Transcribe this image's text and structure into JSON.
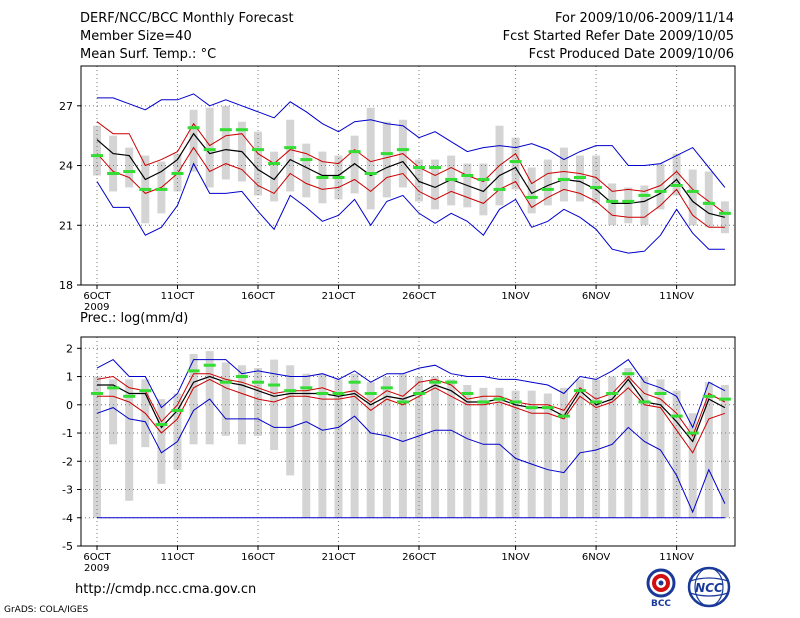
{
  "header": {
    "line1_left": "DERF/NCC/BCC Monthly Forecast",
    "line2_left": "Member Size=40",
    "line3_left": "Mean Surf. Temp.: °C",
    "line1_right": "For 2009/10/06-2009/11/14",
    "line2_right": "Fcst Started Refer Date 2009/10/05",
    "line3_right": "Fcst Produced Date 2009/10/06"
  },
  "footer": {
    "url": "http://cmdp.ncc.cma.gov.cn",
    "grads": "GrADS: COLA/IGES",
    "logo_left_text": "BCC",
    "logo_right_text": "NCC"
  },
  "colors": {
    "envelope": "#0000cc",
    "spread": "#cc0000",
    "mean": "#000000",
    "box": "#d4d4d4",
    "member_mean": "#33dd33",
    "grid": "#777777"
  },
  "chart_data": [
    {
      "type": "line",
      "title": "Mean Surf. Temp.: °C",
      "ylabel": "°C",
      "ylim": [
        18,
        29
      ],
      "yticks": [
        18,
        21,
        24,
        27
      ],
      "x_tick_labels": [
        "6OCT",
        "11OCT",
        "16OCT",
        "21OCT",
        "26OCT",
        "1NOV",
        "6NOV",
        "11NOV"
      ],
      "x_tick_days": [
        0,
        5,
        10,
        15,
        20,
        26,
        31,
        36
      ],
      "year_label": "2009",
      "days": 40,
      "series": [
        {
          "name": "max",
          "values": [
            27.4,
            27.4,
            27.1,
            26.8,
            27.3,
            27.3,
            27.6,
            27.0,
            27.3,
            27.0,
            26.7,
            26.4,
            27.2,
            26.7,
            26.1,
            25.7,
            26.2,
            26.3,
            26.1,
            26.0,
            25.4,
            25.7,
            25.2,
            24.7,
            24.9,
            25.0,
            24.9,
            25.1,
            24.8,
            24.3,
            24.7,
            25.0,
            25.0,
            24.0,
            24.0,
            24.1,
            24.5,
            24.9,
            23.9,
            22.9
          ]
        },
        {
          "name": "upper",
          "values": [
            26.2,
            25.6,
            25.6,
            24.0,
            24.3,
            24.7,
            26.1,
            25.0,
            25.5,
            25.6,
            24.6,
            24.1,
            24.8,
            24.6,
            24.2,
            24.1,
            24.8,
            24.2,
            24.4,
            24.6,
            23.9,
            23.5,
            23.9,
            23.5,
            23.2,
            24.0,
            24.6,
            23.1,
            23.6,
            23.7,
            23.6,
            23.4,
            22.7,
            22.8,
            22.7,
            23.0,
            23.7,
            22.8,
            22.2,
            21.6
          ]
        },
        {
          "name": "mean",
          "values": [
            25.3,
            24.6,
            24.5,
            23.3,
            23.7,
            24.3,
            25.6,
            24.6,
            24.8,
            24.7,
            23.8,
            23.3,
            24.3,
            23.9,
            23.5,
            23.5,
            24.1,
            23.5,
            23.9,
            24.2,
            23.2,
            22.9,
            23.3,
            23.0,
            22.7,
            23.5,
            23.9,
            22.6,
            23.0,
            23.3,
            23.2,
            22.8,
            22.1,
            22.1,
            22.2,
            22.6,
            23.3,
            22.2,
            21.6,
            21.4
          ]
        },
        {
          "name": "lower",
          "values": [
            24.6,
            23.7,
            23.4,
            22.6,
            22.9,
            23.6,
            24.9,
            23.7,
            24.1,
            23.8,
            23.0,
            22.6,
            23.6,
            23.1,
            22.8,
            22.9,
            23.3,
            22.7,
            23.4,
            23.6,
            22.7,
            22.3,
            22.7,
            22.4,
            22.1,
            22.8,
            23.2,
            21.9,
            22.4,
            22.8,
            22.6,
            22.2,
            21.5,
            21.4,
            21.4,
            22.0,
            22.8,
            21.5,
            20.9,
            20.9
          ]
        },
        {
          "name": "min",
          "values": [
            23.2,
            21.9,
            21.9,
            20.5,
            20.9,
            22.0,
            24.1,
            22.6,
            22.6,
            22.7,
            21.7,
            20.8,
            22.5,
            21.9,
            21.2,
            21.5,
            22.3,
            21.0,
            22.2,
            22.5,
            21.6,
            21.1,
            21.6,
            21.2,
            20.5,
            21.8,
            22.3,
            20.9,
            21.2,
            21.8,
            21.4,
            20.8,
            19.8,
            19.6,
            19.7,
            20.5,
            21.8,
            20.6,
            19.8,
            19.8
          ]
        },
        {
          "name": "ensemble_members",
          "values": [
            24.5,
            23.6,
            23.7,
            22.8,
            22.8,
            23.6,
            25.9,
            24.8,
            25.8,
            25.8,
            24.8,
            24.1,
            24.9,
            24.3,
            23.4,
            23.4,
            24.7,
            23.6,
            24.6,
            24.8,
            23.9,
            23.9,
            23.3,
            23.5,
            23.3,
            22.8,
            24.2,
            22.4,
            22.8,
            23.3,
            23.4,
            22.9,
            22.2,
            22.2,
            22.5,
            22.7,
            23.0,
            22.7,
            22.1,
            21.6
          ]
        }
      ],
      "box_ranges": [
        [
          23.5,
          26.0
        ],
        [
          22.7,
          25.5
        ],
        [
          22.9,
          24.9
        ],
        [
          21.1,
          24.5
        ],
        [
          21.6,
          24.2
        ],
        [
          22.7,
          24.6
        ],
        [
          23.7,
          26.8
        ],
        [
          22.9,
          26.9
        ],
        [
          23.3,
          27.0
        ],
        [
          23.2,
          26.2
        ],
        [
          22.5,
          25.7
        ],
        [
          22.2,
          24.7
        ],
        [
          22.7,
          26.3
        ],
        [
          22.4,
          25.1
        ],
        [
          22.1,
          24.7
        ],
        [
          22.3,
          24.5
        ],
        [
          22.6,
          25.5
        ],
        [
          21.8,
          26.9
        ],
        [
          22.4,
          26.2
        ],
        [
          22.9,
          26.3
        ],
        [
          22.2,
          24.3
        ],
        [
          21.8,
          24.3
        ],
        [
          22.0,
          24.5
        ],
        [
          21.9,
          24.1
        ],
        [
          21.5,
          24.1
        ],
        [
          22.0,
          26.0
        ],
        [
          22.8,
          25.4
        ],
        [
          21.6,
          23.9
        ],
        [
          22.0,
          24.3
        ],
        [
          22.2,
          24.9
        ],
        [
          22.2,
          24.5
        ],
        [
          22.1,
          24.5
        ],
        [
          21.0,
          23.1
        ],
        [
          21.1,
          22.9
        ],
        [
          21.0,
          23.0
        ],
        [
          21.8,
          24.1
        ],
        [
          22.5,
          24.6
        ],
        [
          21.0,
          23.8
        ],
        [
          20.9,
          23.7
        ],
        [
          20.6,
          22.2
        ]
      ]
    },
    {
      "type": "line",
      "title": "Prec.: log(mm/d)",
      "ylabel": "log(mm/d)",
      "ylim": [
        -5,
        2.4
      ],
      "yticks": [
        -5,
        -4,
        -3,
        -2,
        -1,
        0,
        1,
        2
      ],
      "x_tick_labels": [
        "6OCT",
        "11OCT",
        "16OCT",
        "21OCT",
        "26OCT",
        "1NOV",
        "6NOV",
        "11NOV"
      ],
      "x_tick_days": [
        0,
        5,
        10,
        15,
        20,
        26,
        31,
        36
      ],
      "year_label": "2009",
      "days": 40,
      "floor_value": -4,
      "series": [
        {
          "name": "max",
          "values": [
            1.3,
            1.6,
            1.0,
            1.0,
            -0.1,
            0.4,
            1.6,
            1.6,
            1.6,
            1.1,
            1.2,
            1.1,
            1.0,
            1.0,
            1.1,
            0.9,
            1.2,
            0.8,
            1.1,
            1.1,
            1.3,
            1.4,
            1.1,
            1.0,
            1.0,
            0.9,
            0.9,
            0.8,
            0.7,
            0.4,
            1.0,
            0.9,
            1.2,
            1.6,
            0.8,
            0.6,
            0.3,
            -0.8,
            0.8,
            0.5
          ]
        },
        {
          "name": "upper",
          "values": [
            0.9,
            1.0,
            0.6,
            0.5,
            -0.6,
            0.0,
            1.1,
            1.1,
            0.9,
            0.8,
            0.6,
            0.4,
            0.5,
            0.5,
            0.6,
            0.4,
            0.5,
            0.1,
            0.5,
            0.3,
            0.8,
            0.9,
            0.7,
            0.2,
            0.3,
            0.3,
            0.1,
            0.0,
            0.0,
            -0.2,
            0.6,
            0.2,
            0.4,
            1.0,
            0.4,
            0.2,
            -0.3,
            -1.1,
            0.4,
            0.1
          ]
        },
        {
          "name": "mean",
          "values": [
            0.7,
            0.7,
            0.4,
            0.4,
            -0.8,
            -0.2,
            0.8,
            1.0,
            0.8,
            0.7,
            0.5,
            0.3,
            0.4,
            0.4,
            0.4,
            0.3,
            0.4,
            0.0,
            0.3,
            0.2,
            0.4,
            0.7,
            0.5,
            0.1,
            0.1,
            0.2,
            0.0,
            -0.1,
            -0.1,
            -0.4,
            0.5,
            0.0,
            0.2,
            0.9,
            0.1,
            0.0,
            -0.6,
            -1.3,
            0.2,
            -0.1
          ]
        },
        {
          "name": "lower",
          "values": [
            0.3,
            0.3,
            0.1,
            -0.3,
            -1.0,
            -0.5,
            0.6,
            0.9,
            0.6,
            0.4,
            0.2,
            0.1,
            0.3,
            0.3,
            0.2,
            0.2,
            0.3,
            -0.2,
            0.2,
            0.0,
            0.3,
            0.6,
            0.3,
            0.0,
            0.0,
            0.1,
            -0.1,
            -0.3,
            -0.3,
            -0.5,
            0.3,
            -0.1,
            0.1,
            0.6,
            0.0,
            -0.1,
            -0.9,
            -1.7,
            -0.5,
            -0.3
          ]
        },
        {
          "name": "min",
          "values": [
            -0.3,
            -0.1,
            -0.5,
            -0.6,
            -1.7,
            -1.3,
            -0.2,
            0.2,
            -0.5,
            -0.5,
            -0.5,
            -0.8,
            -0.8,
            -0.6,
            -0.9,
            -0.8,
            -0.4,
            -1.0,
            -1.1,
            -1.3,
            -1.1,
            -0.9,
            -0.9,
            -1.2,
            -1.4,
            -1.4,
            -1.9,
            -2.1,
            -2.3,
            -2.4,
            -1.7,
            -1.6,
            -1.4,
            -0.8,
            -1.3,
            -1.6,
            -2.5,
            -3.8,
            -2.3,
            -3.5
          ]
        },
        {
          "name": "ensemble_members",
          "values": [
            0.4,
            0.6,
            0.3,
            0.5,
            -0.7,
            -0.2,
            1.2,
            1.4,
            0.8,
            1.0,
            0.8,
            0.7,
            0.5,
            0.6,
            0.4,
            0.4,
            0.8,
            0.4,
            0.6,
            0.1,
            0.4,
            0.8,
            0.8,
            0.4,
            0.1,
            0.2,
            0.1,
            -0.1,
            -0.1,
            -0.4,
            0.5,
            0.1,
            0.4,
            1.1,
            0.1,
            0.4,
            -0.4,
            -1.0,
            0.3,
            0.2
          ]
        }
      ],
      "box_ranges": [
        [
          -4.0,
          1.0
        ],
        [
          -1.4,
          0.9
        ],
        [
          -3.4,
          0.9
        ],
        [
          -1.5,
          0.9
        ],
        [
          -2.8,
          0.2
        ],
        [
          -2.3,
          0.4
        ],
        [
          -1.4,
          1.8
        ],
        [
          -1.4,
          1.9
        ],
        [
          -1.1,
          1.5
        ],
        [
          -1.4,
          1.4
        ],
        [
          -1.1,
          1.3
        ],
        [
          -1.6,
          1.6
        ],
        [
          -2.5,
          1.4
        ],
        [
          -4.0,
          1.1
        ],
        [
          -4.0,
          1.1
        ],
        [
          -4.0,
          0.9
        ],
        [
          -4.0,
          1.1
        ],
        [
          -4.0,
          0.8
        ],
        [
          -4.0,
          1.0
        ],
        [
          -4.0,
          1.1
        ],
        [
          -4.0,
          1.0
        ],
        [
          -4.0,
          1.0
        ],
        [
          -4.0,
          0.9
        ],
        [
          -4.0,
          0.7
        ],
        [
          -4.0,
          0.6
        ],
        [
          -4.0,
          0.6
        ],
        [
          -4.0,
          0.5
        ],
        [
          -4.0,
          0.5
        ],
        [
          -4.0,
          0.4
        ],
        [
          -4.0,
          0.6
        ],
        [
          -4.0,
          0.9
        ],
        [
          -4.0,
          0.9
        ],
        [
          -4.0,
          1.0
        ],
        [
          -4.0,
          1.3
        ],
        [
          -4.0,
          1.0
        ],
        [
          -4.0,
          0.9
        ],
        [
          -4.0,
          0.5
        ],
        [
          -4.0,
          -0.3
        ],
        [
          -4.0,
          0.8
        ],
        [
          -4.0,
          0.7
        ]
      ]
    }
  ]
}
